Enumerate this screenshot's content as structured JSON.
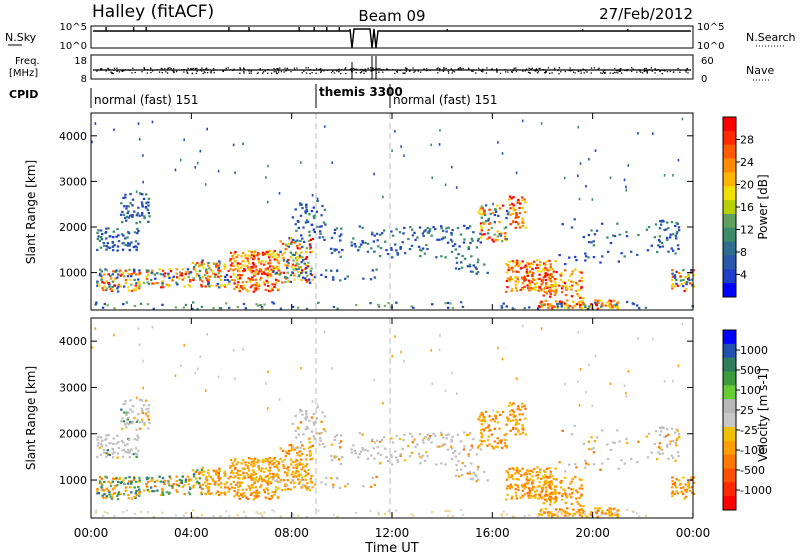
{
  "header": {
    "station": "Halley (fitACF)",
    "beam": "Beam 09",
    "date": "27/Feb/2012"
  },
  "nsky_panel": {
    "left_label": "N.Sky",
    "right_label": "N.Search",
    "tick_top": "10^5",
    "tick_bottom": "10^0"
  },
  "freq_panel": {
    "left_label_1": "Freq.",
    "left_label_2": "[MHz]",
    "right_label": "Nave",
    "left_ticks": [
      "18",
      "8"
    ],
    "right_ticks": [
      "60",
      "0"
    ]
  },
  "cpid": {
    "label": "CPID",
    "segments": [
      "normal (fast) 151",
      "themis 3300",
      "normal (fast) 151"
    ]
  },
  "chart_data": [
    {
      "type": "heatmap",
      "title": "",
      "quantity": "Power",
      "xlabel": "",
      "ylabel": "Slant Range [km]",
      "x_range_hours": [
        0,
        24
      ],
      "ylim": [
        180,
        4500
      ],
      "yticks": [
        "1000",
        "2000",
        "3000",
        "4000"
      ],
      "colorbar": {
        "label": "Power [dB]",
        "ticks": [
          "28",
          "24",
          "20",
          "16",
          "12",
          "8",
          "4"
        ],
        "colors": [
          "#ff0000",
          "#ff2a00",
          "#ff5a00",
          "#ff8c00",
          "#ffb400",
          "#f0e000",
          "#b8d000",
          "#5fa05f",
          "#3c8c6c",
          "#2e6e8e",
          "#2a58a8",
          "#1e40c8",
          "#0000ff"
        ]
      }
    },
    {
      "type": "heatmap",
      "title": "",
      "quantity": "Velocity",
      "xlabel": "Time UT",
      "ylabel": "Slant Range [km]",
      "x_range_hours": [
        0,
        24
      ],
      "xticks": [
        "00:00",
        "04:00",
        "08:00",
        "12:00",
        "16:00",
        "20:00",
        "00:00"
      ],
      "ylim": [
        180,
        4500
      ],
      "yticks": [
        "1000",
        "2000",
        "3000",
        "4000"
      ],
      "colorbar": {
        "label": "Velocity [m s-1]",
        "ticks": [
          "1000",
          "500",
          "100",
          "25",
          "-25",
          "-100",
          "-500",
          "-1000"
        ],
        "colors": [
          "#0000ff",
          "#2050b0",
          "#2e7e5e",
          "#3c9c3c",
          "#66cc33",
          "#b8b8b8",
          "#c8c8c8",
          "#f0c000",
          "#ffa000",
          "#ff7800",
          "#ff5000",
          "#ff2800",
          "#ff0000"
        ]
      }
    }
  ]
}
